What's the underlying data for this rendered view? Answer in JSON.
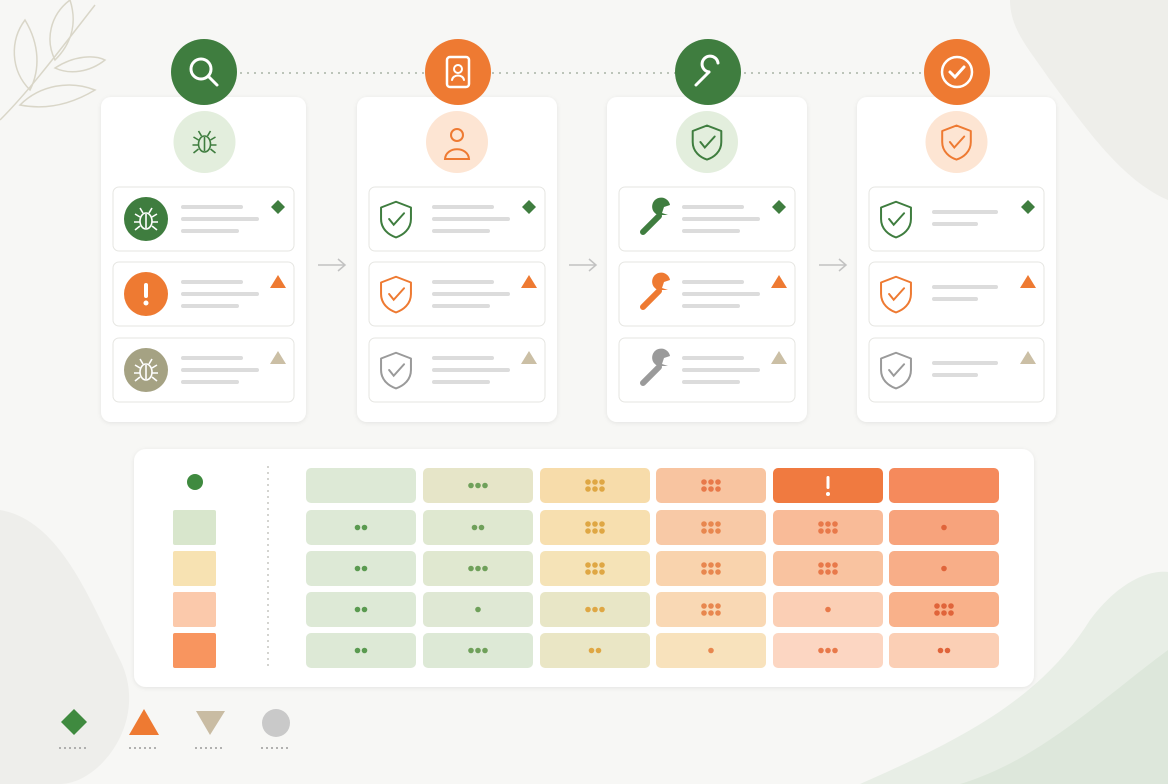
{
  "heatmap": {
    "cells": [
      [
        "#dde9d6",
        "#e6e5c8",
        "#f7dcaa",
        "#f8c4a0",
        "#f07a40",
        "#f58a5c"
      ],
      [
        "#dde9d6",
        "#dfe8d0",
        "#f7dfaf",
        "#f8c9a6",
        "#f9bb98",
        "#f7a37c"
      ],
      [
        "#dde9d6",
        "#e0e8d0",
        "#f5e3b7",
        "#f9d3ad",
        "#f9c3a0",
        "#f8ae88"
      ],
      [
        "#dde9d6",
        "#dfe8d4",
        "#e8e6c6",
        "#f9d8b4",
        "#fbcfb5",
        "#f9b18a"
      ],
      [
        "#dde9d6",
        "#dde9d6",
        "#eae6c5",
        "#f8e2bc",
        "#fcd6c2",
        "#fbcfb5"
      ]
    ],
    "dots": [
      [
        0,
        3,
        6,
        6,
        0,
        0
      ],
      [
        2,
        2,
        6,
        6,
        6,
        1
      ],
      [
        2,
        3,
        6,
        6,
        6,
        1
      ],
      [
        2,
        1,
        3,
        6,
        1,
        6
      ],
      [
        2,
        3,
        2,
        1,
        3,
        2
      ]
    ],
    "dot_colors": [
      "#5a9a50",
      "#6fa05a",
      "#dfa744",
      "#e8874f",
      "#e8794a",
      "#e0643a"
    ],
    "legend_swatches": [
      "#d8e6cc",
      "#f7e2b2",
      "#fbc9ab",
      "#f8955f"
    ]
  }
}
